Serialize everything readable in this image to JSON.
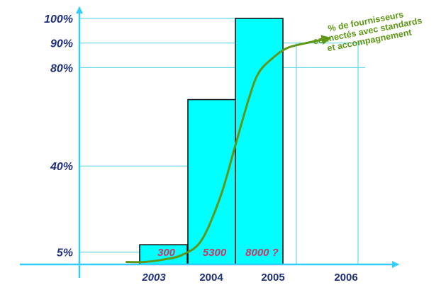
{
  "chart_data": {
    "type": "bar",
    "categories": [
      "2003",
      "2004",
      "2005",
      "2006"
    ],
    "category_italic": [
      true,
      false,
      false,
      false
    ],
    "bar_heights_percent": [
      8,
      67,
      100
    ],
    "bar_labels": [
      "300",
      "5300",
      "8000 ?"
    ],
    "y_ticks": [
      {
        "value": 5,
        "label": "5%"
      },
      {
        "value": 40,
        "label": "40%"
      },
      {
        "value": 80,
        "label": "80%"
      },
      {
        "value": 90,
        "label": "90%"
      },
      {
        "value": 100,
        "label": "100%"
      }
    ],
    "curve": {
      "name": "% de fournisseurs connectés avec standards et accompagnement",
      "name_lines": [
        "% de fournisseurs",
        "connectés avec standards",
        "et accompagnement"
      ],
      "x": [
        2002.2,
        2002.6,
        2003.0,
        2003.4,
        2003.8,
        2004.2,
        2004.5,
        2004.8,
        2005.0,
        2005.3,
        2005.6,
        2006.0,
        2006.5
      ],
      "y": [
        1,
        1,
        2,
        4,
        10,
        28,
        48,
        68,
        78,
        84,
        88,
        90,
        92
      ]
    },
    "ylim": [
      0,
      100
    ],
    "grid": "horizontal lines at 5%, 40%, 80%, 90%, 100%",
    "colors": {
      "bar_fill": "#00ffff",
      "bar_stroke": "#000000",
      "axis": "#33ccff",
      "curve": "#5f9716",
      "tick_text": "#1f2f7a",
      "bar_label": "#d0345f"
    }
  }
}
